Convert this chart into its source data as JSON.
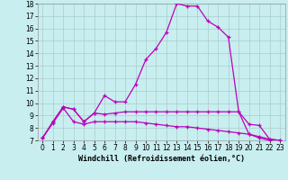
{
  "xlabel": "Windchill (Refroidissement éolien,°C)",
  "background_color": "#c8eef0",
  "grid_color": "#aacccc",
  "line_color": "#bb00bb",
  "xlim": [
    -0.5,
    23.5
  ],
  "ylim": [
    7,
    18
  ],
  "xtick_labels": [
    "0",
    "1",
    "2",
    "3",
    "4",
    "5",
    "6",
    "7",
    "8",
    "9",
    "10",
    "11",
    "12",
    "13",
    "14",
    "15",
    "16",
    "17",
    "18",
    "19",
    "20",
    "21",
    "22",
    "23"
  ],
  "xtick_vals": [
    0,
    1,
    2,
    3,
    4,
    5,
    6,
    7,
    8,
    9,
    10,
    11,
    12,
    13,
    14,
    15,
    16,
    17,
    18,
    19,
    20,
    21,
    22,
    23
  ],
  "yticks": [
    7,
    8,
    9,
    10,
    11,
    12,
    13,
    14,
    15,
    16,
    17,
    18
  ],
  "line1_x": [
    0,
    1,
    2,
    3,
    4,
    5,
    6,
    7,
    8,
    9,
    10,
    11,
    12,
    13,
    14,
    15,
    16,
    17,
    18,
    19,
    20,
    21,
    22,
    23
  ],
  "line1_y": [
    7.2,
    8.5,
    9.7,
    9.5,
    8.5,
    9.2,
    10.6,
    10.1,
    10.1,
    11.5,
    13.5,
    14.4,
    15.7,
    18.0,
    17.8,
    17.8,
    16.6,
    16.1,
    15.3,
    9.3,
    8.3,
    8.2,
    7.1,
    7.0
  ],
  "line2_x": [
    0,
    1,
    2,
    3,
    4,
    5,
    6,
    7,
    8,
    9,
    10,
    11,
    12,
    13,
    14,
    15,
    16,
    17,
    18,
    19,
    20,
    21,
    22,
    23
  ],
  "line2_y": [
    7.2,
    8.5,
    9.7,
    9.5,
    8.5,
    9.2,
    9.1,
    9.2,
    9.3,
    9.3,
    9.3,
    9.3,
    9.3,
    9.3,
    9.3,
    9.3,
    9.3,
    9.3,
    9.3,
    9.3,
    7.5,
    7.2,
    7.0,
    7.0
  ],
  "line3_x": [
    0,
    1,
    2,
    3,
    4,
    5,
    6,
    7,
    8,
    9,
    10,
    11,
    12,
    13,
    14,
    15,
    16,
    17,
    18,
    19,
    20,
    21,
    22,
    23
  ],
  "line3_y": [
    7.2,
    8.4,
    9.6,
    8.5,
    8.3,
    8.5,
    8.5,
    8.5,
    8.5,
    8.5,
    8.4,
    8.3,
    8.2,
    8.1,
    8.1,
    8.0,
    7.9,
    7.8,
    7.7,
    7.6,
    7.5,
    7.3,
    7.1,
    7.0
  ],
  "tick_fontsize": 5.5,
  "label_fontsize": 6,
  "lw": 0.9,
  "marker_size": 3
}
